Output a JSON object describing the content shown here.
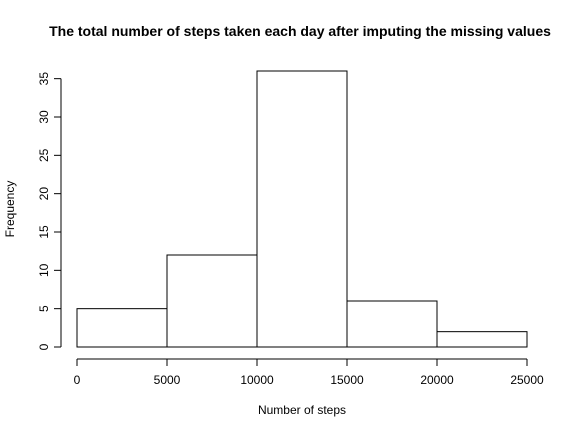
{
  "chart_data": {
    "type": "bar",
    "title": "The total number of steps taken each day after imputing the missing values",
    "xlabel": "Number of steps",
    "ylabel": "Frequency",
    "bins": [
      {
        "start": 0,
        "end": 5000,
        "value": 5
      },
      {
        "start": 5000,
        "end": 10000,
        "value": 12
      },
      {
        "start": 10000,
        "end": 15000,
        "value": 36
      },
      {
        "start": 15000,
        "end": 20000,
        "value": 6
      },
      {
        "start": 20000,
        "end": 25000,
        "value": 2
      }
    ],
    "xlim": [
      0,
      25000
    ],
    "ylim": [
      0,
      36
    ],
    "x_ticks": [
      0,
      5000,
      10000,
      15000,
      20000,
      25000
    ],
    "y_ticks": [
      0,
      5,
      10,
      15,
      20,
      25,
      30,
      35
    ],
    "grid": false,
    "colors": {
      "bar_fill": "#ffffff",
      "bar_stroke": "#000000"
    }
  }
}
